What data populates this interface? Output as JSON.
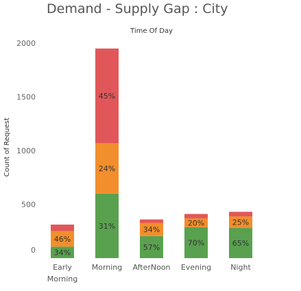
{
  "title": "Demand - Supply Gap : City",
  "chart_data": {
    "type": "bar",
    "stacked": true,
    "title": "Demand - Supply Gap : City",
    "top_label": "Time Of Day",
    "ylabel": "Count of Request",
    "xlabel": "",
    "ylim": [
      0,
      2000
    ],
    "yticks": [
      0,
      500,
      1000,
      1500,
      2000
    ],
    "grid": false,
    "categories": [
      [
        "Early",
        "Morning"
      ],
      [
        "Morning"
      ],
      [
        "AfterNoon"
      ],
      [
        "Evening"
      ],
      [
        "Night"
      ]
    ],
    "series": [
      {
        "color": "#59a14f",
        "values": [
          107,
          600,
          205,
          288,
          280
        ],
        "labels": [
          "34%",
          "31%",
          "57%",
          "70%",
          "65%"
        ]
      },
      {
        "color": "#f28e2b",
        "values": [
          145,
          470,
          123,
          82,
          108
        ],
        "labels": [
          "46%",
          "24%",
          "34%",
          "20%",
          "25%"
        ]
      },
      {
        "color": "#e15759",
        "values": [
          60,
          880,
          32,
          41,
          43
        ],
        "labels": [
          "",
          "45%",
          "",
          "",
          ""
        ]
      }
    ]
  }
}
